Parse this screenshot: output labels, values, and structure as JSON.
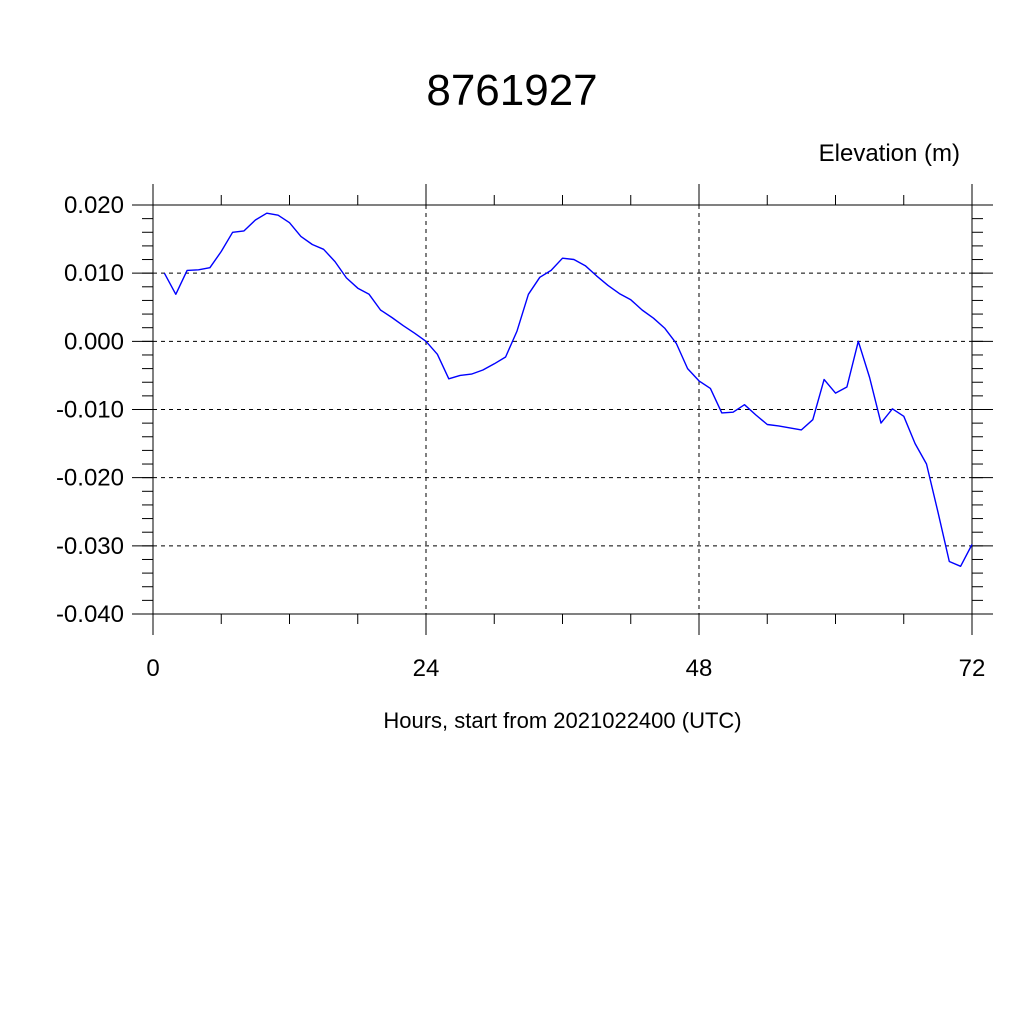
{
  "chart_data": {
    "type": "line",
    "title": "8761927",
    "ylabel": "Elevation (m)",
    "xlabel": "Hours, start from 2021022400 (UTC)",
    "xlim": [
      0,
      72
    ],
    "ylim": [
      -0.04,
      0.02
    ],
    "x_ticks": [
      0,
      24,
      48,
      72
    ],
    "x_tick_labels": [
      "0",
      "24",
      "48",
      "72"
    ],
    "y_ticks": [
      0.02,
      0.01,
      0.0,
      -0.01,
      -0.02,
      -0.03,
      -0.04
    ],
    "y_tick_labels": [
      "0.020",
      "0.010",
      "0.000",
      "-0.010",
      "-0.020",
      "-0.030",
      "-0.040"
    ],
    "grid": true,
    "series": [
      {
        "color": "#0000ff",
        "x": [
          1,
          2,
          3,
          4,
          5,
          6,
          7,
          8,
          9,
          10,
          11,
          12,
          13,
          14,
          15,
          16,
          17,
          18,
          19,
          20,
          21,
          22,
          23,
          24,
          25,
          26,
          27,
          28,
          29,
          30,
          31,
          32,
          33,
          34,
          35,
          36,
          37,
          38,
          39,
          40,
          41,
          42,
          43,
          44,
          45,
          46,
          47,
          48,
          49,
          50,
          51,
          52,
          53,
          54,
          55,
          56,
          57,
          58,
          59,
          60,
          61,
          62,
          63,
          64,
          65,
          66,
          67,
          68,
          69,
          70,
          71,
          72
        ],
        "values": [
          0.01,
          0.0069,
          0.0104,
          0.0105,
          0.0108,
          0.0132,
          0.016,
          0.0162,
          0.0178,
          0.0188,
          0.0185,
          0.0174,
          0.0154,
          0.0142,
          0.0135,
          0.0117,
          0.0093,
          0.0078,
          0.0069,
          0.0046,
          0.0035,
          0.0023,
          0.0012,
          0.0,
          -0.0019,
          -0.0055,
          -0.005,
          -0.0048,
          -0.0042,
          -0.0033,
          -0.0023,
          0.0015,
          0.0069,
          0.0094,
          0.0104,
          0.0122,
          0.012,
          0.0111,
          0.0096,
          0.0082,
          0.007,
          0.0061,
          0.0046,
          0.0034,
          0.0019,
          -0.0003,
          -0.004,
          -0.0058,
          -0.0069,
          -0.0105,
          -0.0104,
          -0.0093,
          -0.0108,
          -0.0122,
          -0.0124,
          -0.0127,
          -0.013,
          -0.0115,
          -0.0056,
          -0.0076,
          -0.0067,
          0.0,
          -0.0053,
          -0.012,
          -0.0099,
          -0.011,
          -0.015,
          -0.018,
          -0.025,
          -0.0323,
          -0.033,
          -0.0298
        ]
      }
    ]
  }
}
